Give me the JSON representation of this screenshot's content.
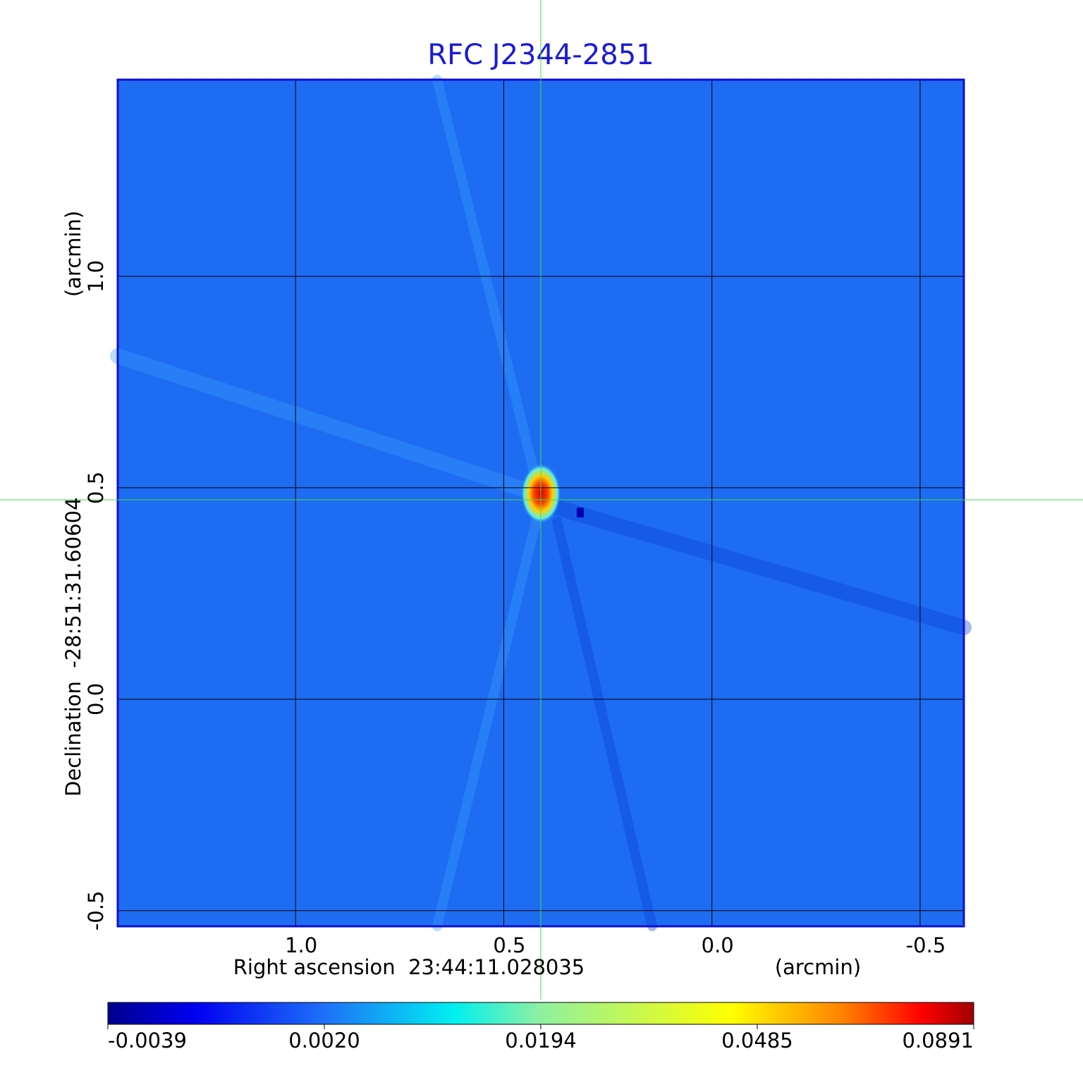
{
  "chart_data": {
    "type": "image",
    "title": "RFC J2344-2851",
    "x_label": "Right ascension  23:44:11.028035",
    "x_unit": "(arcmin)",
    "y_label": "Declination  -28:51:31.60604",
    "y_unit": "(arcmin)",
    "xlim": [
      1.427,
      -0.605
    ],
    "ylim": [
      -0.537,
      1.465
    ],
    "xticks": [
      {
        "value": 1.0,
        "label": "1.0"
      },
      0.5,
      {
        "value": 0.0,
        "label": "0.0"
      },
      -0.5
    ],
    "yticks": [
      {
        "value": 1.0,
        "label": "1.0"
      },
      0.5,
      {
        "value": 0.0,
        "label": "0.0"
      },
      -0.5
    ],
    "grid": true,
    "colorbar_ticks": [
      -0.0039,
      {
        "value": 0.002,
        "label": "0.0020"
      },
      0.0194,
      0.0485,
      0.0891
    ]
  }
}
